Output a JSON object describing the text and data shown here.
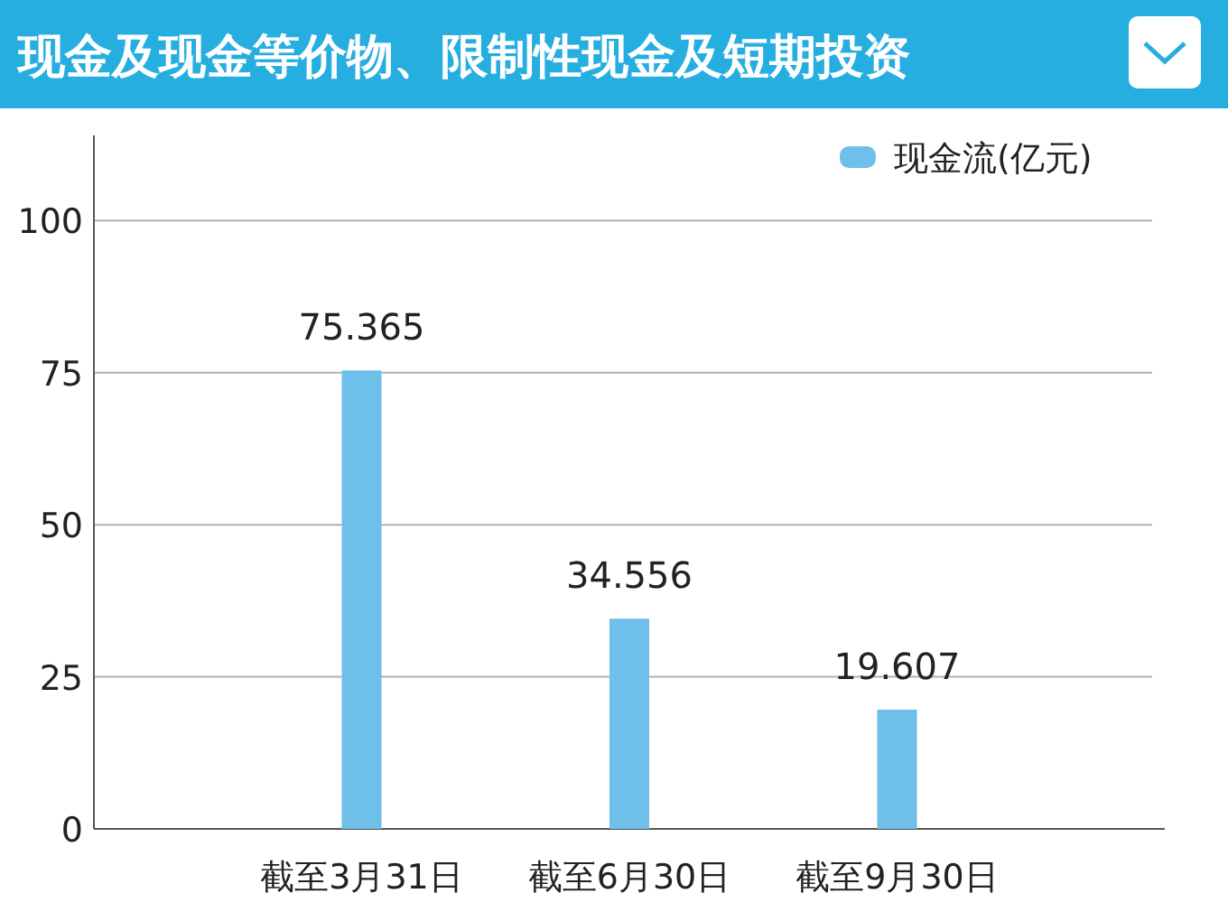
{
  "chart_data": {
    "type": "bar",
    "title": "现金及现金等价物、限制性现金及短期投资",
    "categories": [
      "截至3月31日",
      "截至6月30日",
      "截至9月30日"
    ],
    "series": [
      {
        "name": "现金流(亿元)",
        "color": "#6ebfe9",
        "values": [
          75.365,
          34.556,
          19.607
        ]
      }
    ],
    "ylim": [
      0,
      114
    ],
    "yticks": [
      0,
      25,
      50,
      75,
      100
    ],
    "grid": "y",
    "legend": "top right",
    "data_labels": true
  }
}
